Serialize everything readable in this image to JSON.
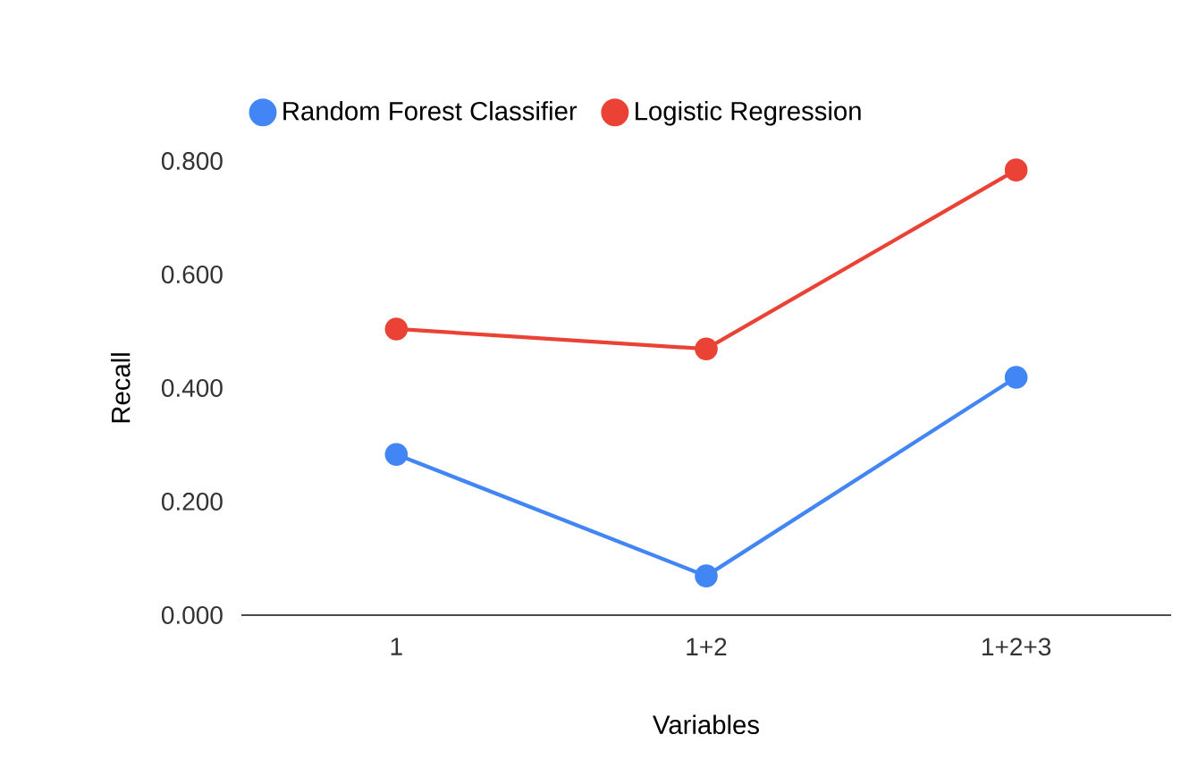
{
  "chart_data": {
    "type": "line",
    "xlabel": "Variables",
    "ylabel": "Recall",
    "categories": [
      "1",
      "1+2",
      "1+2+3"
    ],
    "series": [
      {
        "name": "Random Forest Classifier",
        "color": "#4285f4",
        "values": [
          0.283,
          0.069,
          0.419
        ]
      },
      {
        "name": "Logistic Regression",
        "color": "#ea4335",
        "values": [
          0.504,
          0.469,
          0.784
        ]
      }
    ],
    "ylim": [
      0,
      0.8
    ],
    "yticks": [
      {
        "value": 0,
        "label": "0.000"
      },
      {
        "value": 0.2,
        "label": "0.200"
      },
      {
        "value": 0.4,
        "label": "0.400"
      },
      {
        "value": 0.6,
        "label": "0.600"
      },
      {
        "value": 0.8,
        "label": "0.800"
      }
    ],
    "grid": false,
    "legend": "top left",
    "marker": "circle",
    "line_style": "solid"
  }
}
